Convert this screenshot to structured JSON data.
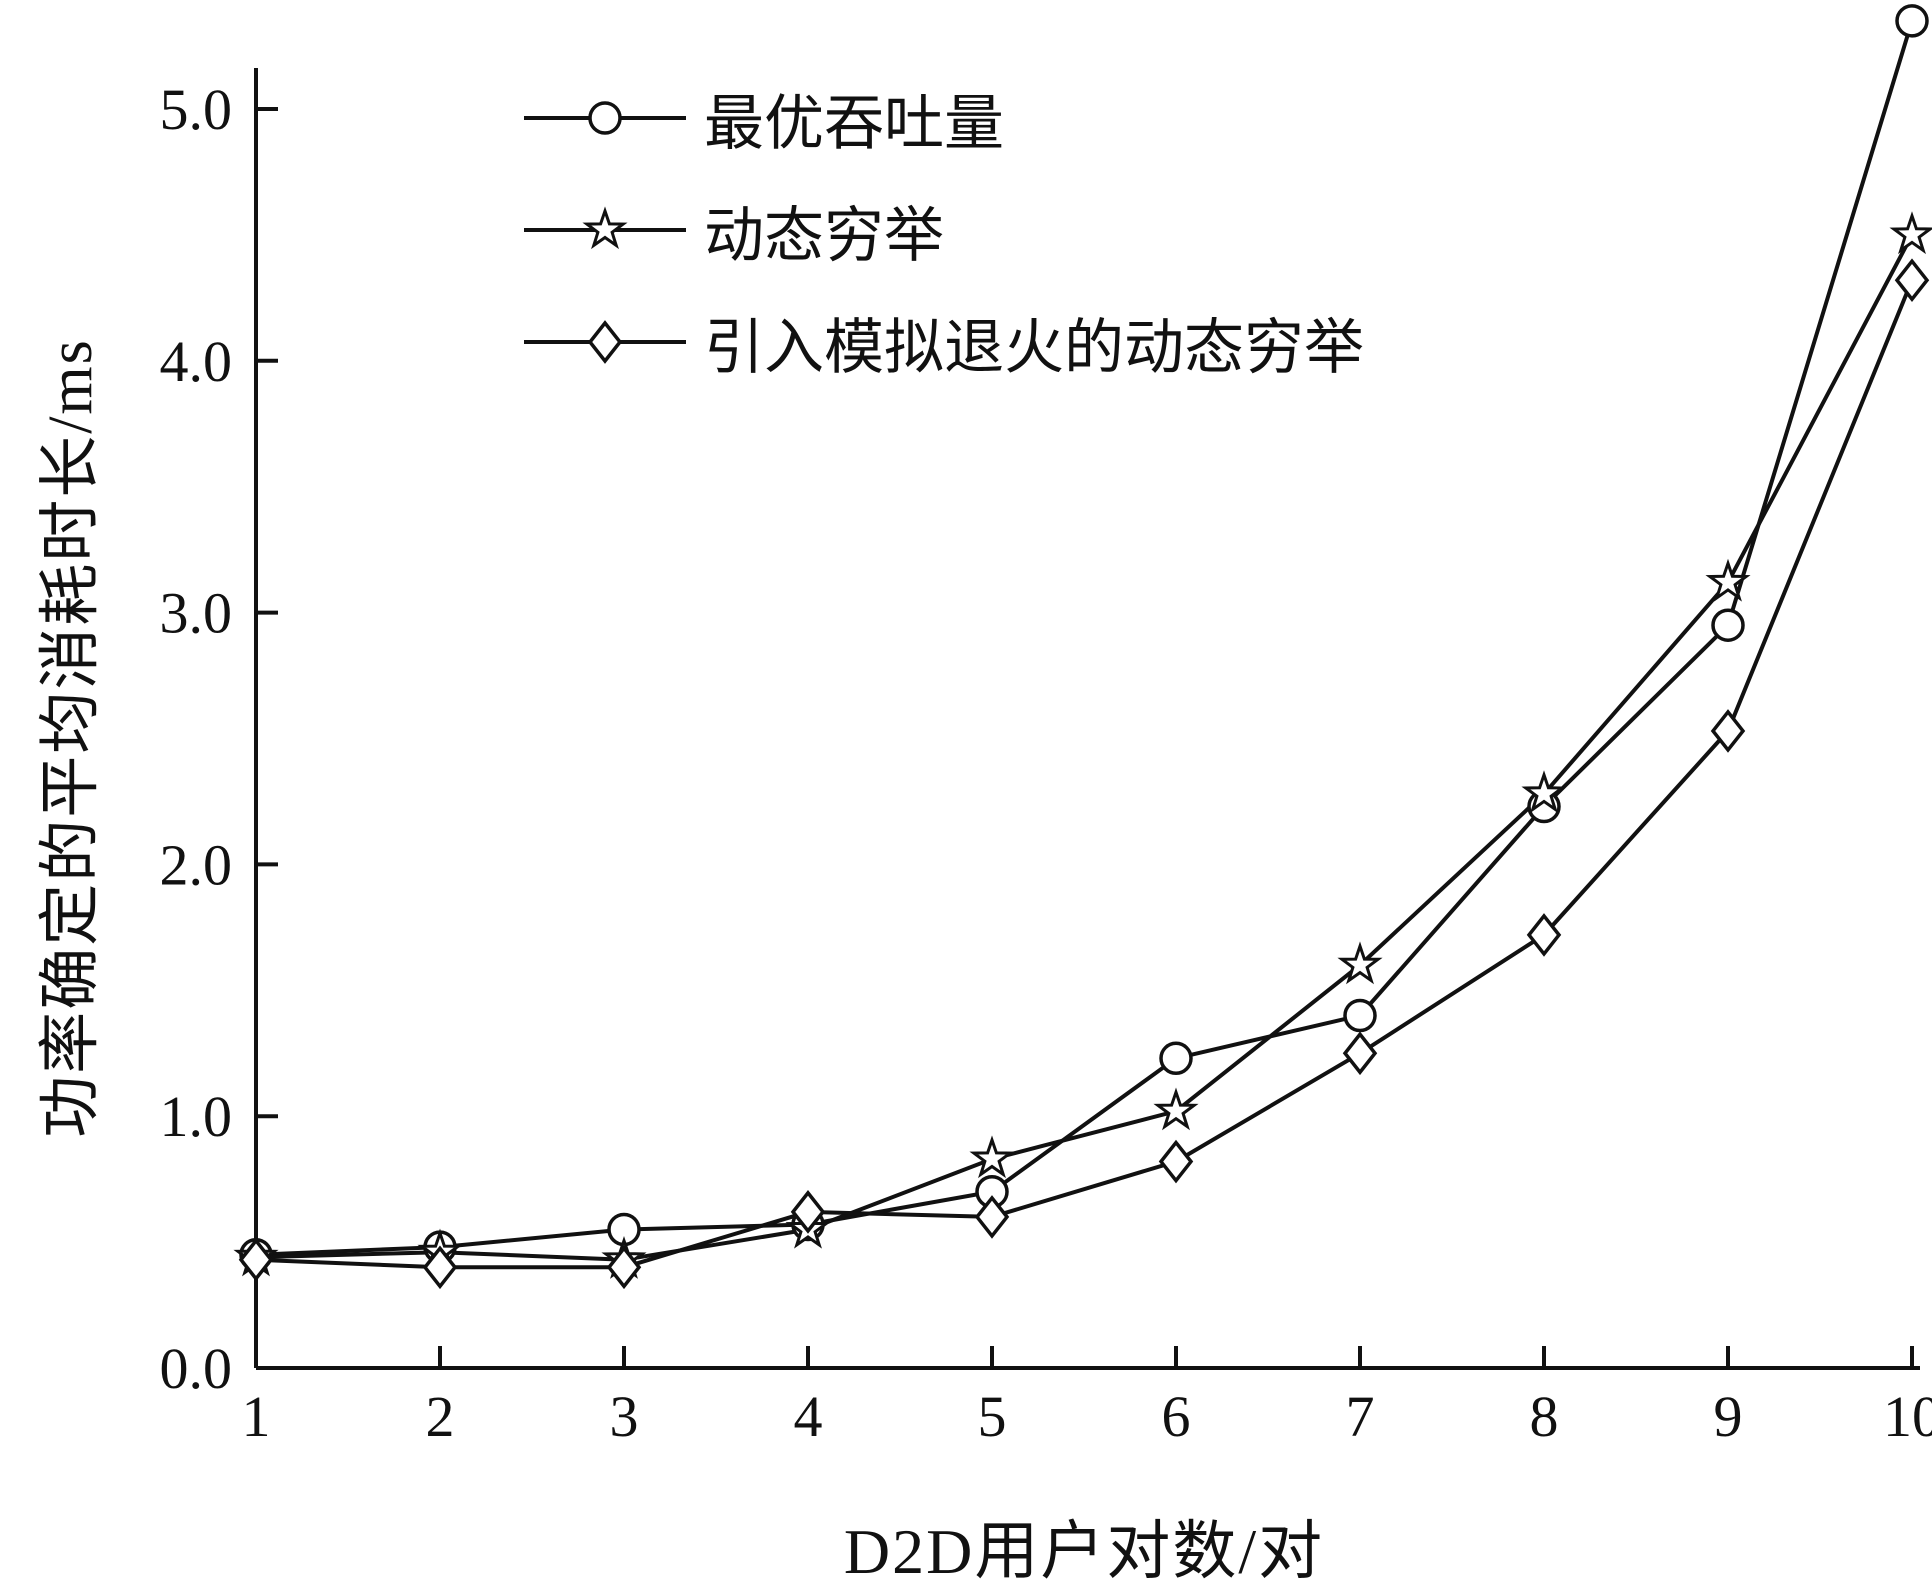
{
  "chart_data": {
    "type": "line",
    "title": "",
    "xlabel": "D2D用户对数/对",
    "ylabel": "功率确定的平均消耗时长/ms",
    "xlim": [
      1,
      10
    ],
    "ylim": [
      0,
      5.0
    ],
    "xticks": [
      1,
      2,
      3,
      4,
      5,
      6,
      7,
      8,
      9,
      10
    ],
    "yticks": [
      0,
      1,
      2,
      3,
      4,
      5
    ],
    "ytick_labels": [
      "0.0",
      "1.0",
      "2.0",
      "3.0",
      "4.0",
      "5.0"
    ],
    "grid": false,
    "legend_position": "upper-left-inside",
    "line_color": "#111111",
    "x": [
      1,
      2,
      3,
      4,
      5,
      6,
      7,
      8,
      9,
      10
    ],
    "series": [
      {
        "name": "最优吞吐量",
        "marker": "circle",
        "values": [
          0.45,
          0.48,
          0.55,
          0.57,
          0.7,
          1.23,
          1.4,
          2.23,
          2.95,
          5.35
        ]
      },
      {
        "name": "动态穷举",
        "marker": "star",
        "values": [
          0.44,
          0.46,
          0.43,
          0.55,
          0.83,
          1.02,
          1.6,
          2.28,
          3.12,
          4.5
        ]
      },
      {
        "name": "引入模拟退火的动态穷举",
        "marker": "diamond",
        "values": [
          0.43,
          0.4,
          0.4,
          0.62,
          0.6,
          0.82,
          1.25,
          1.72,
          2.53,
          4.32
        ]
      }
    ]
  }
}
